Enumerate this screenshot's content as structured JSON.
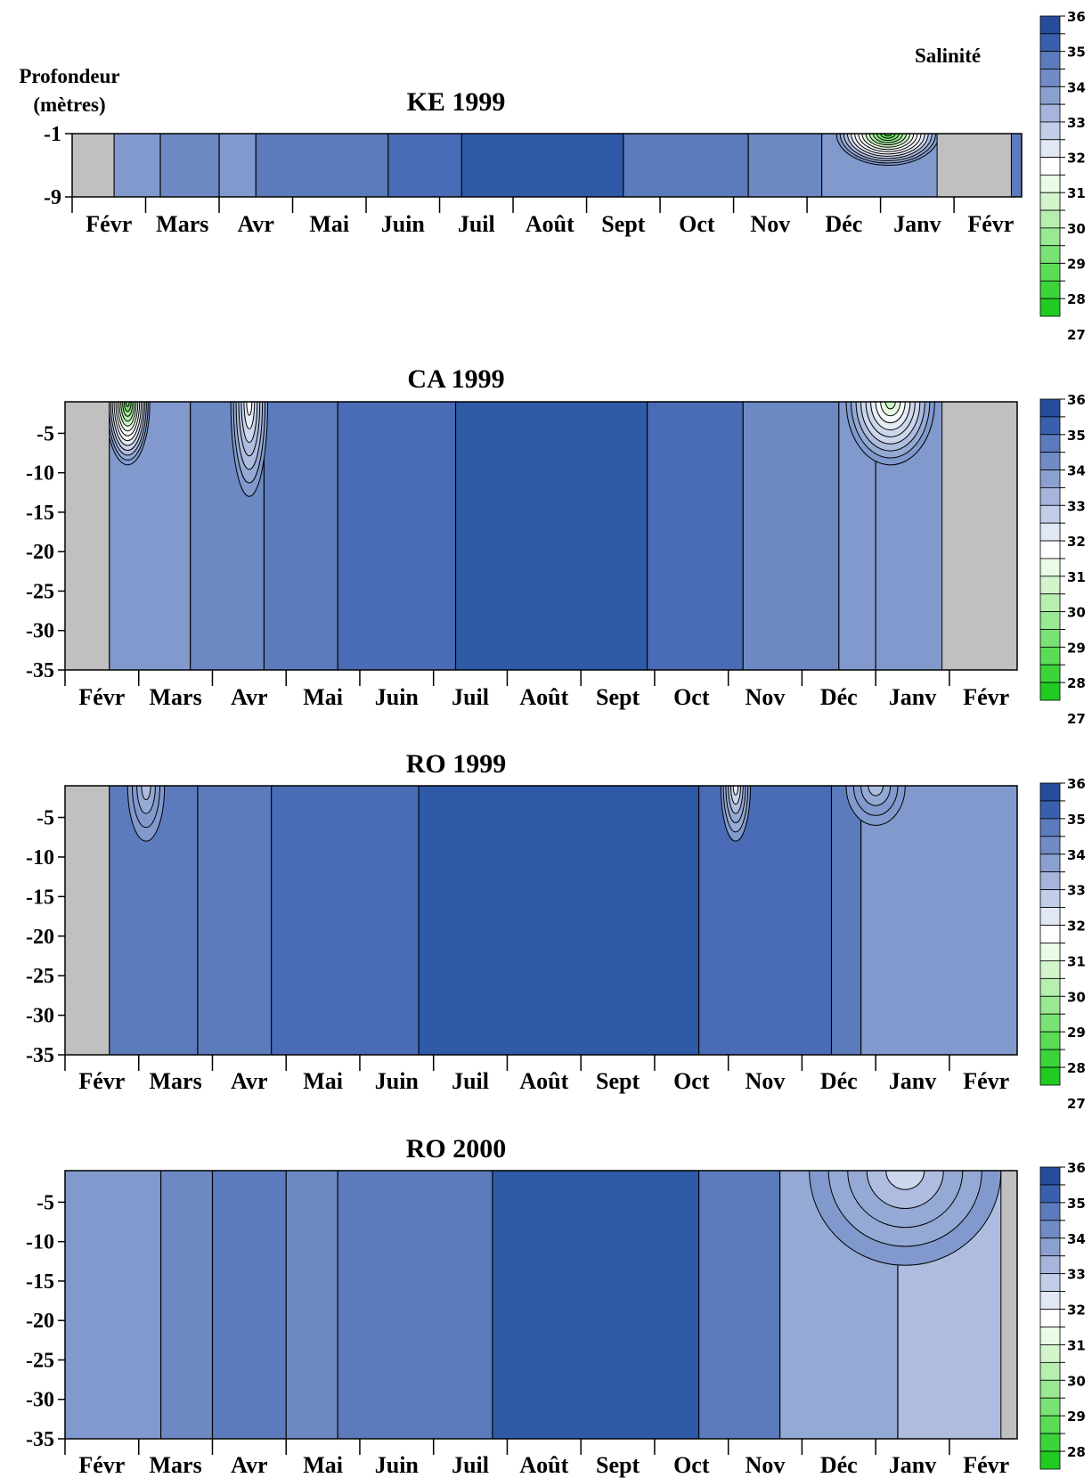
{
  "chart_data": [
    {
      "type": "heatmap",
      "title": "KE 1999",
      "xlabel": "",
      "ylabel": "Profondeur (mètres)",
      "x_tick_labels": [
        "Févr",
        "Mars",
        "Avr",
        "Mai",
        "Juin",
        "Juil",
        "Août",
        "Sept",
        "Oct",
        "Nov",
        "Déc",
        "Janv",
        "Févr"
      ],
      "y_tick_labels": [
        "-1",
        "-9"
      ],
      "ylim": [
        -9,
        -1
      ],
      "colorbar_label": "Salinité",
      "colorbar_ticks": [
        "36",
        "35",
        "34",
        "33",
        "32",
        "31",
        "30",
        "29",
        "28",
        "27"
      ],
      "no_data": [
        {
          "from": 0.0,
          "to": 0.57
        },
        {
          "from": 11.77,
          "to": 12.78
        }
      ],
      "bands": [
        {
          "from": 0.57,
          "to": 1.2,
          "salinity": 33.5
        },
        {
          "from": 1.2,
          "to": 2.0,
          "salinity": 34
        },
        {
          "from": 2.0,
          "to": 2.5,
          "salinity": 33.5
        },
        {
          "from": 2.5,
          "to": 4.3,
          "salinity": 34.5
        },
        {
          "from": 4.3,
          "to": 5.3,
          "salinity": 35
        },
        {
          "from": 5.3,
          "to": 7.5,
          "salinity": 35.5
        },
        {
          "from": 7.5,
          "to": 9.2,
          "salinity": 34.5
        },
        {
          "from": 9.2,
          "to": 10.2,
          "salinity": 34
        },
        {
          "from": 10.2,
          "to": 11.77,
          "salinity": 33.5
        }
      ],
      "patches": [
        {
          "x": 11.1,
          "depth": -1,
          "salinity": 27.5,
          "rx": 0.7,
          "ry": 4
        }
      ]
    },
    {
      "type": "heatmap",
      "title": "CA 1999",
      "xlabel": "",
      "ylabel": "",
      "x_tick_labels": [
        "Févr",
        "Mars",
        "Avr",
        "Mai",
        "Juin",
        "Juil",
        "Août",
        "Sept",
        "Oct",
        "Nov",
        "Déc",
        "Janv",
        "Févr"
      ],
      "y_tick_labels": [
        "-5",
        "-10",
        "-15",
        "-20",
        "-25",
        "-30",
        "-35"
      ],
      "ylim": [
        -35,
        -1
      ],
      "colorbar_ticks": [
        "36",
        "35",
        "34",
        "33",
        "32",
        "31",
        "30",
        "29",
        "28",
        "27"
      ],
      "no_data": [
        {
          "from": 0.0,
          "to": 0.6
        },
        {
          "from": 11.9,
          "to": 12.92
        }
      ],
      "bands": [
        {
          "from": 0.6,
          "to": 1.7,
          "salinity": 33.5
        },
        {
          "from": 1.7,
          "to": 2.7,
          "salinity": 34
        },
        {
          "from": 2.7,
          "to": 3.7,
          "salinity": 34.5
        },
        {
          "from": 3.7,
          "to": 5.3,
          "salinity": 35
        },
        {
          "from": 5.3,
          "to": 7.9,
          "salinity": 35.5
        },
        {
          "from": 7.9,
          "to": 9.2,
          "salinity": 35
        },
        {
          "from": 9.2,
          "to": 10.5,
          "salinity": 34
        },
        {
          "from": 10.5,
          "to": 11.0,
          "salinity": 33.5
        },
        {
          "from": 11.0,
          "to": 11.9,
          "salinity": 33.5
        }
      ],
      "patches": [
        {
          "x": 0.85,
          "depth": -1,
          "salinity": 28,
          "rx": 0.3,
          "ry": 8
        },
        {
          "x": 2.5,
          "depth": -1,
          "salinity": 31,
          "rx": 0.25,
          "ry": 12
        },
        {
          "x": 11.2,
          "depth": -1,
          "salinity": 30,
          "rx": 0.6,
          "ry": 8
        }
      ]
    },
    {
      "type": "heatmap",
      "title": "RO 1999",
      "xlabel": "",
      "ylabel": "",
      "x_tick_labels": [
        "Févr",
        "Mars",
        "Avr",
        "Mai",
        "Juin",
        "Juil",
        "Août",
        "Sept",
        "Oct",
        "Nov",
        "Déc",
        "Janv",
        "Févr"
      ],
      "y_tick_labels": [
        "-5",
        "-10",
        "-15",
        "-20",
        "-25",
        "-30",
        "-35"
      ],
      "ylim": [
        -35,
        -1
      ],
      "colorbar_ticks": [
        "36",
        "35",
        "34",
        "33",
        "32",
        "31",
        "30",
        "29",
        "28",
        "27"
      ],
      "no_data": [
        {
          "from": 0.0,
          "to": 0.6
        }
      ],
      "bands": [
        {
          "from": 0.6,
          "to": 1.8,
          "salinity": 34.5
        },
        {
          "from": 1.8,
          "to": 2.8,
          "salinity": 34.5
        },
        {
          "from": 2.8,
          "to": 4.8,
          "salinity": 35
        },
        {
          "from": 4.8,
          "to": 8.6,
          "salinity": 35.5
        },
        {
          "from": 8.6,
          "to": 10.4,
          "salinity": 35
        },
        {
          "from": 10.4,
          "to": 10.8,
          "salinity": 34.5
        },
        {
          "from": 10.8,
          "to": 12.92,
          "salinity": 33.5
        }
      ],
      "patches": [
        {
          "x": 1.1,
          "depth": -1,
          "salinity": 32.5,
          "rx": 0.25,
          "ry": 7
        },
        {
          "x": 9.1,
          "depth": -1,
          "salinity": 31.5,
          "rx": 0.2,
          "ry": 7
        },
        {
          "x": 11.0,
          "depth": -1,
          "salinity": 32.5,
          "rx": 0.4,
          "ry": 5
        }
      ]
    },
    {
      "type": "heatmap",
      "title": "RO 2000",
      "xlabel": "",
      "ylabel": "",
      "x_tick_labels": [
        "Févr",
        "Mars",
        "Avr",
        "Mai",
        "Juin",
        "Juil",
        "Août",
        "Sept",
        "Oct",
        "Nov",
        "Déc",
        "Janv",
        "Févr"
      ],
      "y_tick_labels": [
        "-5",
        "-10",
        "-15",
        "-20",
        "-25",
        "-30",
        "-35"
      ],
      "ylim": [
        -35,
        -1
      ],
      "colorbar_ticks": [
        "36",
        "35",
        "34",
        "33",
        "32",
        "31",
        "30",
        "29",
        "28",
        "27"
      ],
      "no_data": [
        {
          "from": 12.7,
          "to": 12.92
        }
      ],
      "bands": [
        {
          "from": 0.0,
          "to": 1.3,
          "salinity": 33.5
        },
        {
          "from": 1.3,
          "to": 2.0,
          "salinity": 34
        },
        {
          "from": 2.0,
          "to": 3.0,
          "salinity": 34.5
        },
        {
          "from": 3.0,
          "to": 3.7,
          "salinity": 34
        },
        {
          "from": 3.7,
          "to": 5.8,
          "salinity": 34.5
        },
        {
          "from": 5.8,
          "to": 8.6,
          "salinity": 35.5
        },
        {
          "from": 8.6,
          "to": 9.7,
          "salinity": 34.5
        },
        {
          "from": 9.7,
          "to": 11.3,
          "salinity": 33
        },
        {
          "from": 11.3,
          "to": 12.7,
          "salinity": 32.5
        }
      ],
      "patches": [
        {
          "x": 10.7,
          "depth": -1,
          "salinity": 30.5,
          "rx": 0.5,
          "ry": 7
        },
        {
          "x": 12.0,
          "depth": -1,
          "salinity": 30.5,
          "rx": 0.35,
          "ry": 7
        },
        {
          "x": 11.4,
          "depth": -1,
          "salinity": 32,
          "rx": 1.3,
          "ry": 12
        }
      ]
    }
  ],
  "colors": {
    "no_data": "#c0c0c0",
    "scale": [
      {
        "value": 35.5,
        "color": "#2f5aa8"
      },
      {
        "value": 35,
        "color": "#4a6bb5"
      },
      {
        "value": 34.5,
        "color": "#5c7bbd"
      },
      {
        "value": 34,
        "color": "#6c89c4"
      },
      {
        "value": 33.5,
        "color": "#8199cc"
      },
      {
        "value": 33,
        "color": "#94a9d4"
      },
      {
        "value": 32.5,
        "color": "#aebddf"
      },
      {
        "value": 32,
        "color": "#ccd6ec"
      },
      {
        "value": 31.5,
        "color": "#e6ecf6"
      },
      {
        "value": 31,
        "color": "#f8fbff"
      },
      {
        "value": 30.5,
        "color": "#e6f9e2"
      },
      {
        "value": 30,
        "color": "#cdf3c4"
      },
      {
        "value": 29.5,
        "color": "#b2ecaa"
      },
      {
        "value": 29,
        "color": "#96e58d"
      },
      {
        "value": 28.5,
        "color": "#7ce071"
      },
      {
        "value": 28,
        "color": "#5fd852"
      },
      {
        "value": 27.5,
        "color": "#44d136"
      },
      {
        "value": 27,
        "color": "#27c81a"
      }
    ],
    "colorbar_swatches": [
      "#274c9a",
      "#3a60ad",
      "#5c7bbd",
      "#708cc6",
      "#8aa0cf",
      "#a5b5db",
      "#c2cde8",
      "#e1e8f4",
      "#ffffff",
      "#eafbe6",
      "#d2f5cb",
      "#b6efae",
      "#98e991",
      "#7ae274",
      "#5cdb57",
      "#3cd33b",
      "#20cc22"
    ]
  }
}
